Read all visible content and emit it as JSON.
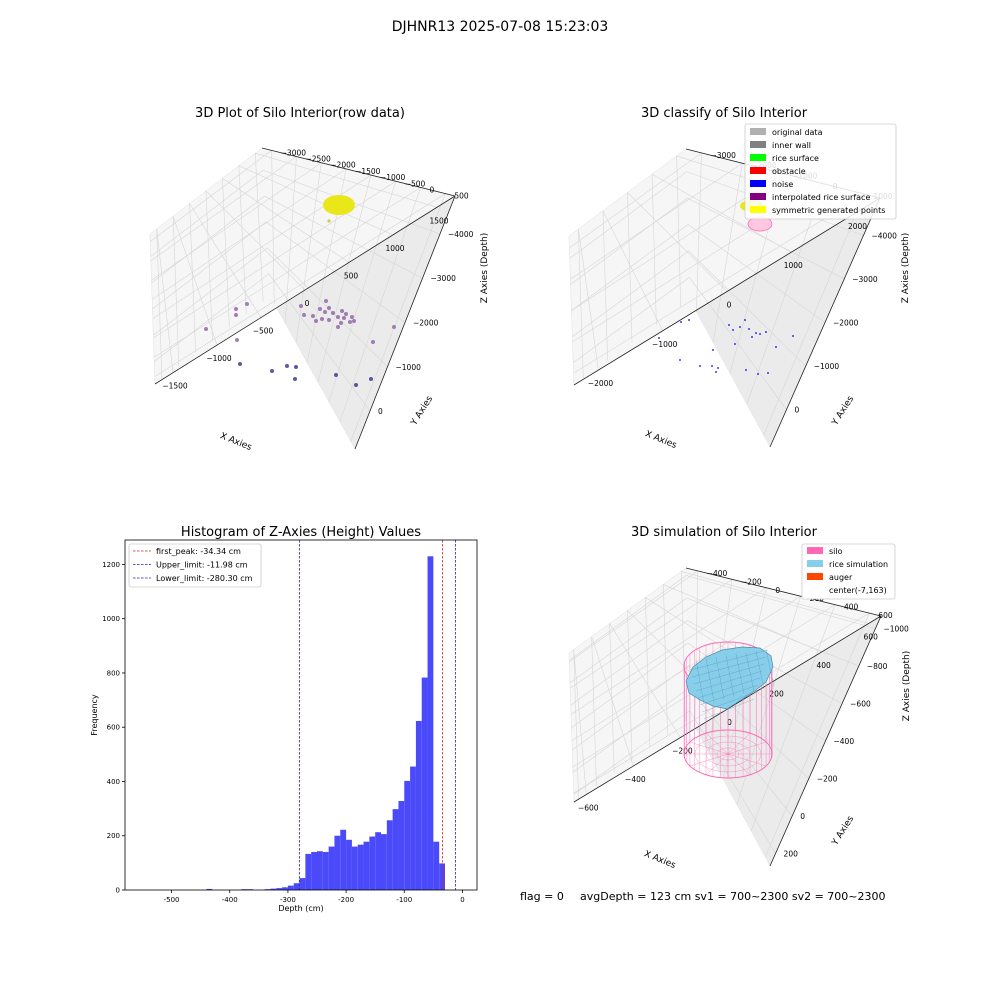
{
  "suptitle": "DJHNR13 2025-07-08 15:23:03",
  "footer": {
    "flag": "flag = 0",
    "avg": "avgDepth = 123 cm  sv1 = 700~2300  sv2 = 700~2300"
  },
  "chart_data": [
    {
      "type": "scatter",
      "subtype": "3d",
      "title": "3D Plot of Silo Interior(row data)",
      "xlabel": "X Axies",
      "ylabel": "Y Axies",
      "zlabel": "Z Axies (Depth)",
      "xticks": [
        "−1500",
        "−1000",
        "−500",
        "0",
        "500",
        "1000",
        "1500"
      ],
      "yticks": [
        "500",
        "0",
        "−500",
        "−1000",
        "−1500",
        "−2000",
        "−2500",
        "−3000"
      ],
      "zticks": [
        "0",
        "−1000",
        "−2000",
        "−3000",
        "−4000"
      ],
      "colors": {
        "surface": "#e9e61a",
        "points": "#5b4a8f"
      }
    },
    {
      "type": "scatter",
      "subtype": "3d",
      "title": "3D classify of Silo Interior",
      "xlabel": "X Axies",
      "ylabel": "Y Axies",
      "zlabel": "Z Axies (Depth)",
      "xticks": [
        "−2000",
        "−1000",
        "0",
        "1000",
        "2000"
      ],
      "yticks": [
        "1000",
        "0",
        "−1000",
        "−2000",
        "−3000"
      ],
      "zticks": [
        "0",
        "−1000",
        "−2000",
        "−3000",
        "−4000"
      ],
      "legend_position": "top-right",
      "legend": [
        {
          "label": "original data",
          "color": "#b0b0b0"
        },
        {
          "label": "inner wall",
          "color": "#808080"
        },
        {
          "label": "rice surface",
          "color": "#00ff00"
        },
        {
          "label": "obstacle",
          "color": "#ff0000"
        },
        {
          "label": "noise",
          "color": "#0000ff"
        },
        {
          "label": "interpolated rice surface",
          "color": "#800080"
        },
        {
          "label": "symmetric generated points",
          "color": "#ffff00"
        }
      ]
    },
    {
      "type": "bar",
      "subtype": "histogram",
      "title": "Histogram of Z-Axies (Height) Values",
      "xlabel": "Depth (cm)",
      "ylabel": "Frequency",
      "xlim": [
        -580,
        25
      ],
      "ylim": [
        0,
        1290
      ],
      "xticks": [
        -500,
        -400,
        -300,
        -200,
        -100,
        0
      ],
      "yticks": [
        0,
        200,
        400,
        600,
        800,
        1000,
        1200
      ],
      "bin_width": 10,
      "bar_color": "#4a4afb",
      "bins": [
        {
          "x": -440,
          "v": 4
        },
        {
          "x": -380,
          "v": 3
        },
        {
          "x": -370,
          "v": 3
        },
        {
          "x": -340,
          "v": 3
        },
        {
          "x": -330,
          "v": 5
        },
        {
          "x": -320,
          "v": 7
        },
        {
          "x": -310,
          "v": 10
        },
        {
          "x": -300,
          "v": 16
        },
        {
          "x": -290,
          "v": 25
        },
        {
          "x": -280,
          "v": 44
        },
        {
          "x": -270,
          "v": 133
        },
        {
          "x": -260,
          "v": 140
        },
        {
          "x": -250,
          "v": 143
        },
        {
          "x": -240,
          "v": 140
        },
        {
          "x": -230,
          "v": 160
        },
        {
          "x": -220,
          "v": 200
        },
        {
          "x": -210,
          "v": 222
        },
        {
          "x": -200,
          "v": 185
        },
        {
          "x": -190,
          "v": 160
        },
        {
          "x": -180,
          "v": 167
        },
        {
          "x": -170,
          "v": 178
        },
        {
          "x": -160,
          "v": 197
        },
        {
          "x": -150,
          "v": 213
        },
        {
          "x": -140,
          "v": 206
        },
        {
          "x": -130,
          "v": 257
        },
        {
          "x": -120,
          "v": 298
        },
        {
          "x": -110,
          "v": 328
        },
        {
          "x": -100,
          "v": 402
        },
        {
          "x": -90,
          "v": 455
        },
        {
          "x": -80,
          "v": 623
        },
        {
          "x": -70,
          "v": 783
        },
        {
          "x": -60,
          "v": 1230
        },
        {
          "x": -50,
          "v": 178
        },
        {
          "x": -40,
          "v": 98
        }
      ],
      "vlines": [
        {
          "label": "first_peak: -34.34 cm",
          "x": -34.34,
          "color": "#d42222"
        },
        {
          "label": "Upper_limit: -11.98 cm",
          "x": -11.98,
          "color": "#2222aa"
        },
        {
          "label": "Lower_limit: -280.30 cm",
          "x": -280.3,
          "color": "#2222aa"
        }
      ],
      "legend_position": "top-left"
    },
    {
      "type": "area",
      "subtype": "3d-surface",
      "title": "3D simulation of Silo Interior",
      "xlabel": "X Axies",
      "ylabel": "Y Axies",
      "zlabel": "Z Axies (Depth)",
      "xticks": [
        "−600",
        "−400",
        "−200",
        "0",
        "200",
        "400",
        "600"
      ],
      "yticks": [
        "600",
        "400",
        "200",
        "0",
        "−200",
        "−400"
      ],
      "zticks": [
        "200",
        "0",
        "−200",
        "−400",
        "−600",
        "−800",
        "−1000"
      ],
      "legend_position": "top-right",
      "legend": [
        {
          "label": "silo",
          "color": "#ff69b4"
        },
        {
          "label": "rice simulation",
          "color": "#87ceeb"
        },
        {
          "label": "auger",
          "color": "#ff4500"
        },
        {
          "label": "center(-7,163)",
          "color": ""
        }
      ]
    }
  ]
}
